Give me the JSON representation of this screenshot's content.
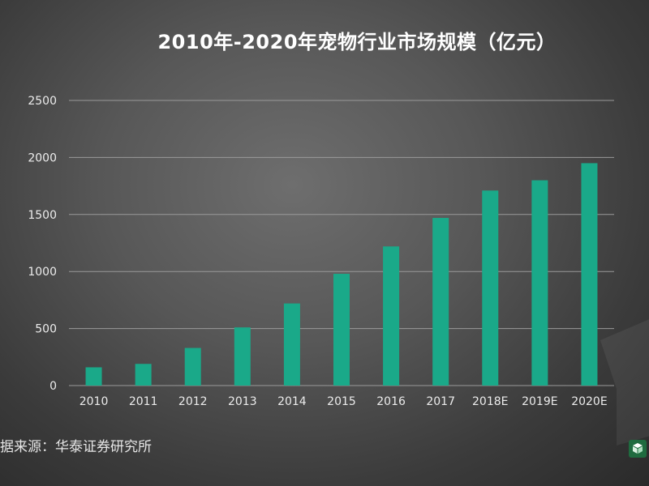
{
  "chart_data": {
    "type": "bar",
    "title": "2010年-2020年宠物行业市场规模（亿元）",
    "categories": [
      "2010",
      "2011",
      "2012",
      "2013",
      "2014",
      "2015",
      "2016",
      "2017",
      "2018E",
      "2019E",
      "2020E"
    ],
    "series": [
      {
        "values": [
          160,
          190,
          330,
          510,
          720,
          980,
          1220,
          1470,
          1710,
          1800,
          1950
        ]
      }
    ],
    "ylim": [
      0,
      2500
    ],
    "yticks": [
      0,
      500,
      1000,
      1500,
      2000,
      2500
    ],
    "grid": true,
    "bar_color": "#1aa989",
    "grid_color": "#9a9a9a"
  },
  "source": "据来源：华泰证券研究所",
  "logo_icon": "cube-logo-icon",
  "watermark_icon": "watermark-logo-icon"
}
